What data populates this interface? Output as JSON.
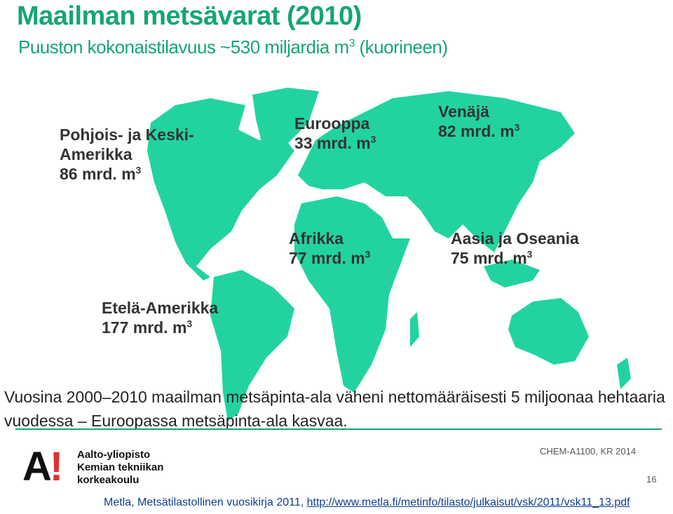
{
  "header": {
    "title": "Maailman metsävarat (2010)",
    "subtitle": {
      "before": "Puuston kokonaistilavuus ~530 miljardia m",
      "exponent": "3",
      "after": " (kuorineen)"
    }
  },
  "regions": [
    {
      "name": "Pohjois- ja Keski-Amerikka",
      "volume": "86 mrd. m",
      "exponent": "3"
    },
    {
      "name": "Eurooppa",
      "volume": "33 mrd. m",
      "exponent": "3"
    },
    {
      "name": "Venäjä",
      "volume": "82 mrd. m",
      "exponent": "3"
    },
    {
      "name": "Afrikka",
      "volume": "77 mrd. m",
      "exponent": "3"
    },
    {
      "name": "Aasia ja Oseania",
      "volume": "75 mrd. m",
      "exponent": "3"
    },
    {
      "name": "Etelä-Amerikka",
      "volume": "177 mrd. m",
      "exponent": "3"
    }
  ],
  "body": "Vuosina 2000–2010 maailman metsäpinta-ala väheni nettomääräisesti 5 miljoonaa hehtaaria vuodessa – Euroopassa metsäpinta-ala kasvaa.",
  "footer": {
    "logo_mark": "A",
    "logo_mark_accent": "!",
    "university": [
      "Aalto-yliopisto",
      "Kemian tekniikan",
      "korkeakoulu"
    ],
    "course": "CHEM-A1100, KR 2014",
    "page": "16",
    "source": "Metla, Metsätilastollinen vuosikirja 2011, ",
    "link": "http://www.metla.fi/metinfo/tilasto/julkaisut/vsk/2011/vsk11_13.pdf"
  }
}
